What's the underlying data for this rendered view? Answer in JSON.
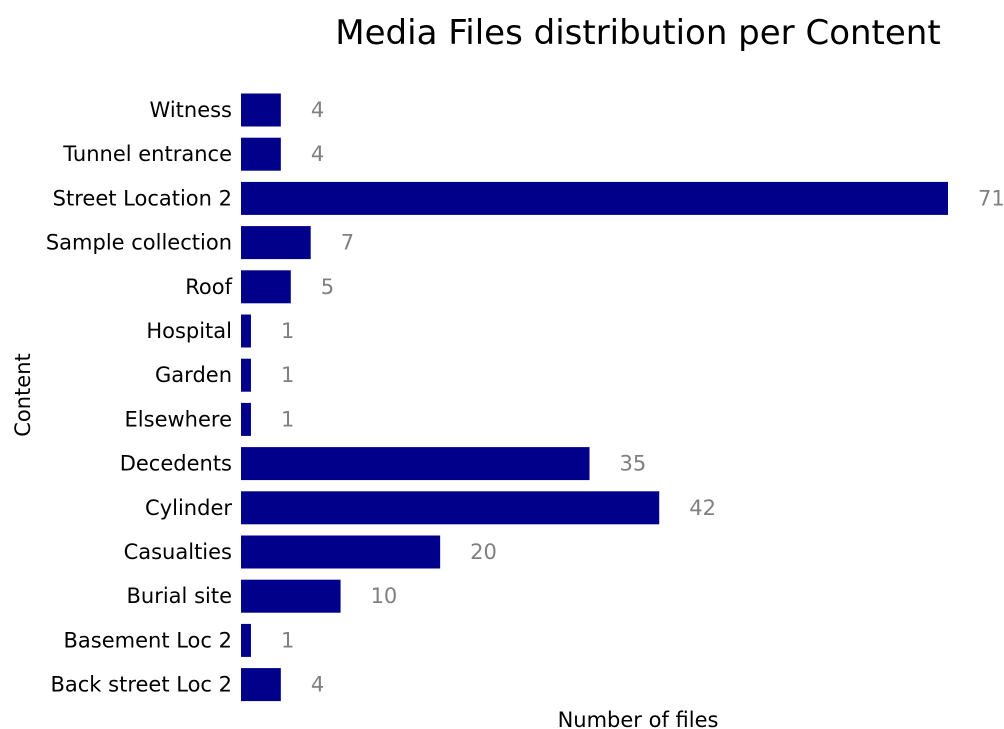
{
  "chart_data": {
    "type": "bar",
    "orientation": "horizontal",
    "title": "Media Files distribution per Content",
    "xlabel": "Number of files",
    "ylabel": "Content",
    "categories": [
      "Witness",
      "Tunnel entrance",
      "Street Location 2",
      "Sample collection",
      "Roof",
      "Hospital",
      "Garden",
      "Elsewhere",
      "Decedents",
      "Cylinder",
      "Casualties",
      "Burial site",
      "Basement Loc 2",
      "Back street Loc 2"
    ],
    "values": [
      4,
      4,
      71,
      7,
      5,
      1,
      1,
      1,
      35,
      42,
      20,
      10,
      1,
      4
    ],
    "value_labels": [
      "4",
      "4",
      "71",
      "7",
      "5",
      "1",
      "1",
      "1",
      "35",
      "42",
      "20",
      "10",
      "1",
      "4"
    ],
    "xlim": [
      0,
      71
    ],
    "grid": false,
    "legend": "none",
    "bar_color": "#00008b",
    "value_label_color": "#808080"
  }
}
